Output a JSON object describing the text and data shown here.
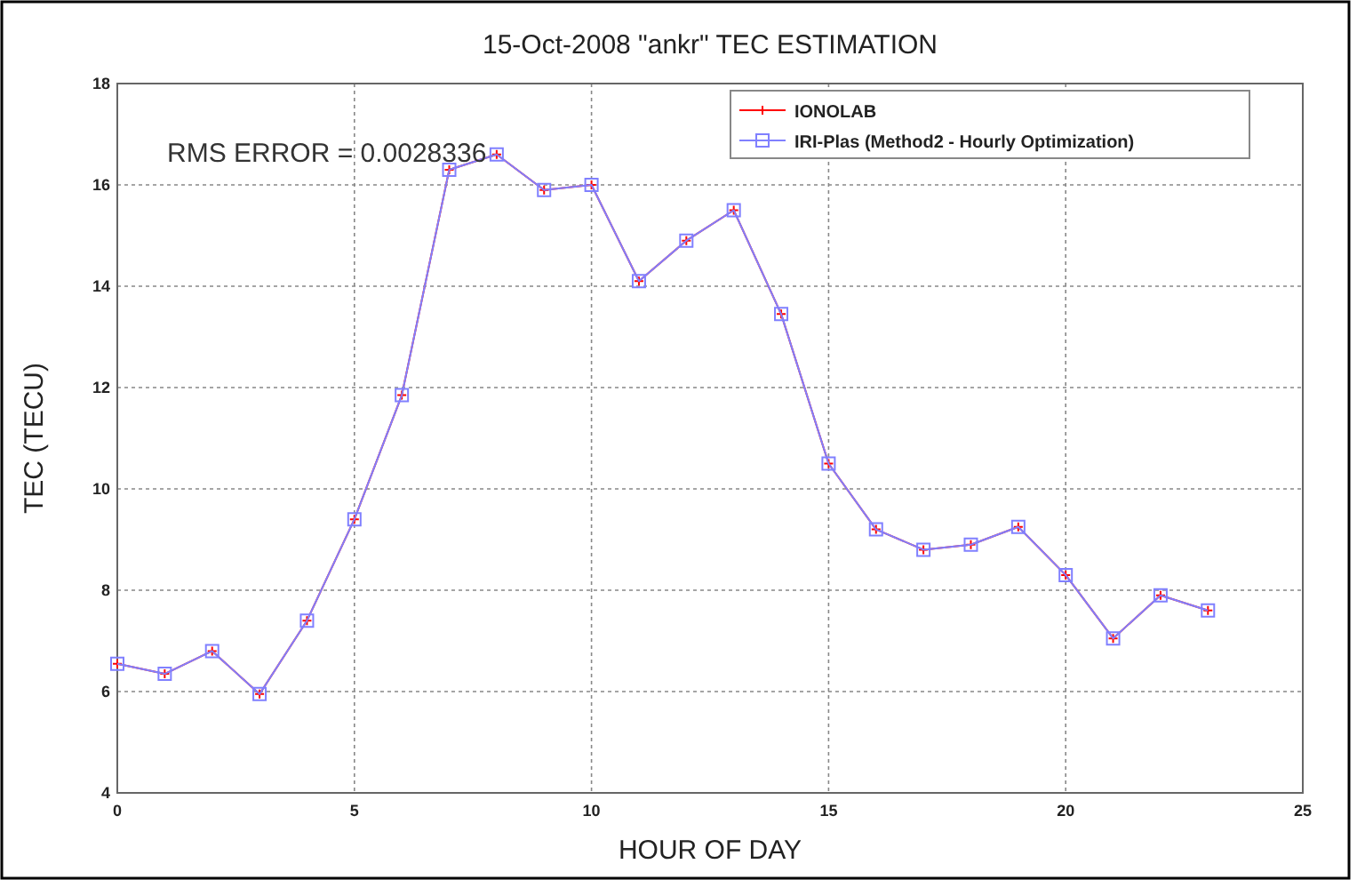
{
  "chart_data": {
    "type": "line",
    "title": "15-Oct-2008 \"ankr\" TEC ESTIMATION",
    "xlabel": "HOUR OF DAY",
    "ylabel": "TEC (TECU)",
    "annotations": [
      "RMS ERROR =  0.0028336"
    ],
    "x": [
      0,
      1,
      2,
      3,
      4,
      5,
      6,
      7,
      8,
      9,
      10,
      11,
      12,
      13,
      14,
      15,
      16,
      17,
      18,
      19,
      20,
      21,
      22,
      23
    ],
    "series": [
      {
        "name": "IONOLAB",
        "color": "#ff0000",
        "marker": "cross",
        "values": [
          6.55,
          6.35,
          6.8,
          5.95,
          7.4,
          9.4,
          11.85,
          16.3,
          16.6,
          15.9,
          16.0,
          14.1,
          14.9,
          15.5,
          13.45,
          10.5,
          9.2,
          8.8,
          8.9,
          9.25,
          8.3,
          7.05,
          7.9,
          7.6
        ]
      },
      {
        "name": "IRI-Plas (Method2 - Hourly Optimization)",
        "color": "#8080ff",
        "marker": "square",
        "values": [
          6.55,
          6.35,
          6.8,
          5.95,
          7.4,
          9.4,
          11.85,
          16.3,
          16.6,
          15.9,
          16.0,
          14.1,
          14.9,
          15.5,
          13.45,
          10.5,
          9.2,
          8.8,
          8.9,
          9.25,
          8.3,
          7.05,
          7.9,
          7.6
        ]
      }
    ],
    "xlim": [
      0,
      25
    ],
    "xticks": [
      0,
      5,
      10,
      15,
      20,
      25
    ],
    "ylim": [
      4,
      18
    ],
    "yticks": [
      4,
      6,
      8,
      10,
      12,
      14,
      16,
      18
    ],
    "grid": true,
    "legend": "top right",
    "line_style": "solid"
  }
}
